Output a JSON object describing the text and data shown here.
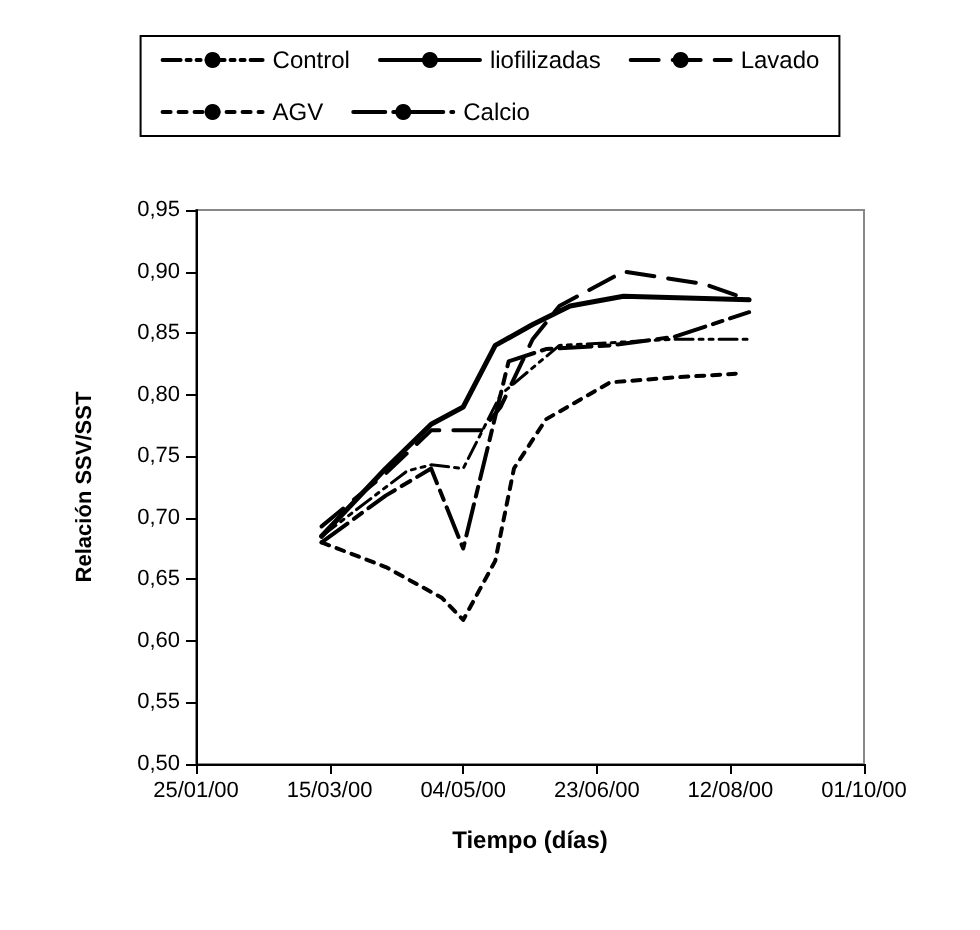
{
  "chart_data": {
    "type": "line",
    "xlabel": "Tiempo (días)",
    "ylabel": "Relación SSV/SST",
    "xlim": [
      "2000-01-25",
      "2000-10-01"
    ],
    "xticks": [
      {
        "value": "2000-01-25",
        "label": "25/01/00"
      },
      {
        "value": "2000-03-15",
        "label": "15/03/00"
      },
      {
        "value": "2000-05-04",
        "label": "04/05/00"
      },
      {
        "value": "2000-06-23",
        "label": "23/06/00"
      },
      {
        "value": "2000-08-12",
        "label": "12/08/00"
      },
      {
        "value": "2000-10-01",
        "label": "01/10/00"
      }
    ],
    "ylim": [
      0.5,
      0.95
    ],
    "yticks": [
      {
        "value": 0.5,
        "label": "0,50"
      },
      {
        "value": 0.55,
        "label": "0,55"
      },
      {
        "value": 0.6,
        "label": "0,60"
      },
      {
        "value": 0.65,
        "label": "0,65"
      },
      {
        "value": 0.7,
        "label": "0,70"
      },
      {
        "value": 0.75,
        "label": "0,75"
      },
      {
        "value": 0.8,
        "label": "0,80"
      },
      {
        "value": 0.85,
        "label": "0,85"
      },
      {
        "value": 0.9,
        "label": "0,90"
      },
      {
        "value": 0.95,
        "label": "0,95"
      }
    ],
    "grid": false,
    "legend": "top",
    "marker": "none",
    "series": [
      {
        "name": "Control",
        "color": "#000000",
        "line_style": "dotted",
        "x": [
          "2000-03-12",
          "2000-04-13",
          "2000-04-22",
          "2000-05-04",
          "2000-05-18",
          "2000-06-09",
          "2000-07-22",
          "2000-08-19"
        ],
        "values": [
          0.685,
          0.738,
          0.743,
          0.74,
          0.8,
          0.84,
          0.845,
          0.845
        ]
      },
      {
        "name": "liofilizadas",
        "color": "#000000",
        "line_style": "solid",
        "x": [
          "2000-03-12",
          "2000-04-05",
          "2000-04-22",
          "2000-05-04",
          "2000-05-16",
          "2000-05-30",
          "2000-06-13",
          "2000-07-03",
          "2000-08-19"
        ],
        "values": [
          0.685,
          0.74,
          0.776,
          0.79,
          0.84,
          0.857,
          0.872,
          0.88,
          0.877
        ]
      },
      {
        "name": "Lavado",
        "color": "#000000",
        "line_style": "dashed",
        "x": [
          "2000-03-12",
          "2000-04-05",
          "2000-04-22",
          "2000-05-11",
          "2000-05-18",
          "2000-05-30",
          "2000-06-09",
          "2000-07-03",
          "2000-08-02",
          "2000-08-19"
        ],
        "values": [
          0.693,
          0.736,
          0.771,
          0.771,
          0.79,
          0.845,
          0.872,
          0.9,
          0.89,
          0.877
        ]
      },
      {
        "name": "AGV",
        "color": "#000000",
        "line_style": "dashed",
        "x": [
          "2000-03-12",
          "2000-04-05",
          "2000-04-26",
          "2000-05-04",
          "2000-05-16",
          "2000-05-23",
          "2000-06-04",
          "2000-06-28",
          "2000-07-22",
          "2000-08-14"
        ],
        "values": [
          0.68,
          0.66,
          0.635,
          0.617,
          0.665,
          0.74,
          0.78,
          0.81,
          0.814,
          0.817
        ]
      },
      {
        "name": "Calcio",
        "color": "#000000",
        "line_style": "dashed",
        "x": [
          "2000-03-12",
          "2000-04-05",
          "2000-04-22",
          "2000-05-04",
          "2000-05-21",
          "2000-06-04",
          "2000-06-28",
          "2000-07-22",
          "2000-08-19"
        ],
        "values": [
          0.68,
          0.718,
          0.74,
          0.675,
          0.827,
          0.837,
          0.84,
          0.847,
          0.867
        ]
      }
    ]
  }
}
